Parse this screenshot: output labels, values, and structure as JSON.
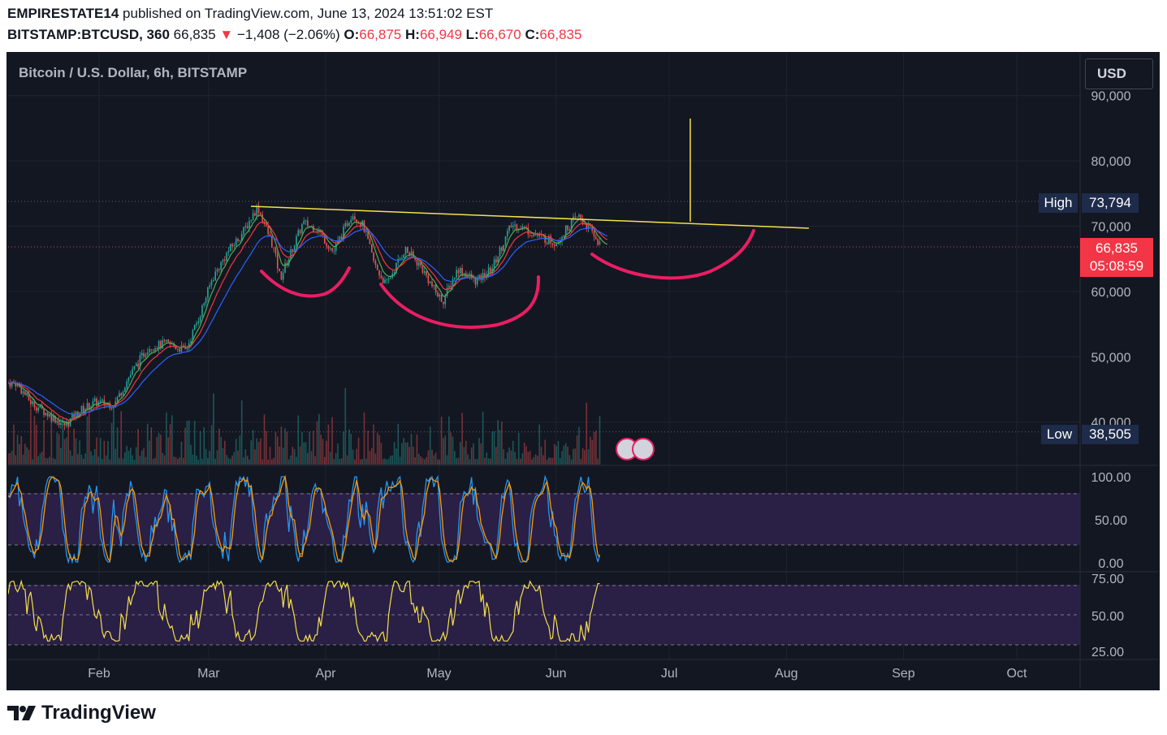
{
  "header": {
    "author": "EMPIRESTATE14",
    "published": "published on TradingView.com, June 13, 2024 13:51:02 EST",
    "symbol": "BITSTAMP:BTCUSD, 360",
    "last": "66,835",
    "change": "−1,408 (−2.06%)",
    "o_label": "O:",
    "o": "66,875",
    "h_label": "H:",
    "h": "66,949",
    "l_label": "L:",
    "l": "66,670",
    "c_label": "C:",
    "c": "66,835"
  },
  "chart_title": "Bitcoin / U.S. Dollar, 6h, BITSTAMP",
  "currency_button": "USD",
  "high_label": "High",
  "high_value": "73,794",
  "low_label": "Low",
  "low_value": "38,505",
  "price_tag": "66,835",
  "countdown": "05:08:59",
  "brand": "TradingView",
  "colors": {
    "background": "#131722",
    "up": "#26a69a",
    "down": "#ef5350",
    "trendline": "#f4e04d",
    "annotation": "#e91e63",
    "rsi_band": "#2a1f45",
    "stoch_k": "#2196f3",
    "stoch_d": "#ff9800",
    "ma_blue": "#2962ff",
    "ma_red": "#f23645",
    "ma_green": "#4caf50"
  },
  "chart_data": [
    {
      "type": "candlestick",
      "title": "Bitcoin / U.S. Dollar, 6h, BITSTAMP",
      "x_ticks": [
        "Feb",
        "Mar",
        "Apr",
        "May",
        "Jun",
        "Jul",
        "Aug",
        "Sep",
        "Oct"
      ],
      "y_ticks": [
        "90,000",
        "80,000",
        "70,000",
        "60,000",
        "50,000",
        "40,000"
      ],
      "ylim": [
        34000,
        92000
      ],
      "grid": true,
      "close_path": [
        [
          "2024-01-10",
          46000
        ],
        [
          "2024-01-14",
          43000
        ],
        [
          "2024-01-19",
          41000
        ],
        [
          "2024-01-23",
          39500
        ],
        [
          "2024-01-27",
          41800
        ],
        [
          "2024-01-31",
          43000
        ],
        [
          "2024-02-05",
          42700
        ],
        [
          "2024-02-09",
          47000
        ],
        [
          "2024-02-14",
          51500
        ],
        [
          "2024-02-19",
          52000
        ],
        [
          "2024-02-24",
          51000
        ],
        [
          "2024-02-28",
          57000
        ],
        [
          "2024-03-02",
          62000
        ],
        [
          "2024-03-06",
          66000
        ],
        [
          "2024-03-10",
          69000
        ],
        [
          "2024-03-14",
          73000
        ],
        [
          "2024-03-18",
          67000
        ],
        [
          "2024-03-20",
          62000
        ],
        [
          "2024-03-26",
          70500
        ],
        [
          "2024-03-30",
          69500
        ],
        [
          "2024-04-03",
          66000
        ],
        [
          "2024-04-08",
          72000
        ],
        [
          "2024-04-11",
          70000
        ],
        [
          "2024-04-14",
          64000
        ],
        [
          "2024-04-17",
          61000
        ],
        [
          "2024-04-22",
          66500
        ],
        [
          "2024-04-26",
          64000
        ],
        [
          "2024-04-30",
          60000
        ],
        [
          "2024-05-02",
          58500
        ],
        [
          "2024-05-06",
          63500
        ],
        [
          "2024-05-11",
          61500
        ],
        [
          "2024-05-15",
          63500
        ],
        [
          "2024-05-20",
          70000
        ],
        [
          "2024-05-22",
          70200
        ],
        [
          "2024-05-27",
          68500
        ],
        [
          "2024-06-01",
          67500
        ],
        [
          "2024-06-05",
          70500
        ],
        [
          "2024-06-07",
          71500
        ],
        [
          "2024-06-10",
          69500
        ],
        [
          "2024-06-13",
          66835
        ]
      ],
      "rsi_levels": [
        "100.00",
        "50.00",
        "0.00"
      ],
      "rsi2_levels": [
        "75.00",
        "50.00",
        "25.00"
      ]
    }
  ]
}
